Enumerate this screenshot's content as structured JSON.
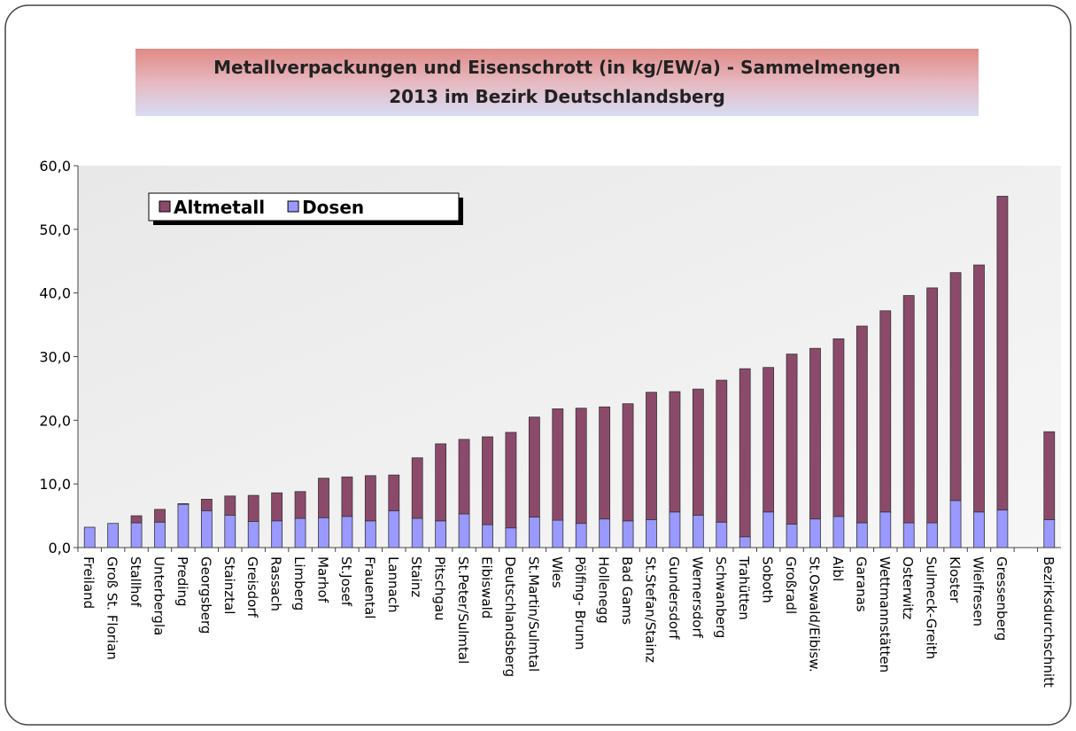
{
  "chart_data": {
    "type": "stacked_bar",
    "title": [
      "Metallverpackungen und Eisenschrott (in kg/EW/a) - Sammelmengen",
      "2013 im Bezirk Deutschlandsberg"
    ],
    "categories": [
      "Freiland",
      "Groß St. Florian",
      "Stallhof",
      "Unterbergla",
      "Preding",
      "Georgsberg",
      "Stainztal",
      "Greisdorf",
      "Rassach",
      "Limberg",
      "Marhof",
      "St.Josef",
      "Frauental",
      "Lannach",
      "Stainz",
      "Pitschgau",
      "St.Peter/Sulmtal",
      "Eibiswald",
      "Deutschlandsberg",
      "St.Martin/Sulmtal",
      "Wies",
      "Pölfing- Brunn",
      "Hollenegg",
      "Bad Gams",
      "St.Stefan/Stainz",
      "Gundersdorf",
      "Wernersdorf",
      "Schwanberg",
      "Trahütten",
      "Soboth",
      "Großradl",
      "St.Oswald/Eibisw.",
      "Aibl",
      "Garanas",
      "Wettmannstätten",
      "Osterwitz",
      "Sulmeck-Greith",
      "Kloster",
      "Wielfresen",
      "Gressenberg",
      null,
      "Bezirksdurchschnitt"
    ],
    "series": [
      {
        "name": "Altmetall",
        "color": "#8c4a6b",
        "values": [
          0,
          0,
          1.1,
          2.0,
          0.1,
          1.8,
          3.0,
          4.1,
          4.4,
          4.2,
          6.2,
          6.2,
          7.1,
          5.6,
          9.5,
          12.1,
          11.7,
          13.8,
          15.0,
          15.7,
          17.5,
          18.1,
          17.6,
          18.4,
          20.0,
          18.9,
          19.8,
          22.3,
          26.4,
          22.7,
          26.7,
          26.8,
          27.9,
          30.9,
          31.6,
          35.7,
          36.9,
          35.8,
          38.8,
          49.3,
          null,
          13.8
        ]
      },
      {
        "name": "Dosen",
        "color": "#9999ff",
        "values": [
          3.2,
          3.8,
          3.9,
          4.0,
          6.8,
          5.8,
          5.1,
          4.1,
          4.2,
          4.6,
          4.7,
          4.9,
          4.2,
          5.8,
          4.6,
          4.2,
          5.3,
          3.6,
          3.1,
          4.8,
          4.3,
          3.8,
          4.5,
          4.2,
          4.4,
          5.6,
          5.1,
          4.0,
          1.7,
          5.6,
          3.7,
          4.5,
          4.9,
          3.9,
          5.6,
          3.9,
          3.9,
          7.4,
          5.6,
          5.9,
          null,
          4.4
        ]
      }
    ],
    "ylim": [
      0,
      60
    ],
    "yticks": [
      {
        "value": 0,
        "label": "0,0"
      },
      {
        "value": 10,
        "label": "10,0"
      },
      {
        "value": 20,
        "label": "20,0"
      },
      {
        "value": 30,
        "label": "30,0"
      },
      {
        "value": 40,
        "label": "40,0"
      },
      {
        "value": 50,
        "label": "50,0"
      },
      {
        "value": 60,
        "label": "60,0"
      }
    ],
    "stack_order": [
      "Dosen",
      "Altmetall"
    ]
  }
}
